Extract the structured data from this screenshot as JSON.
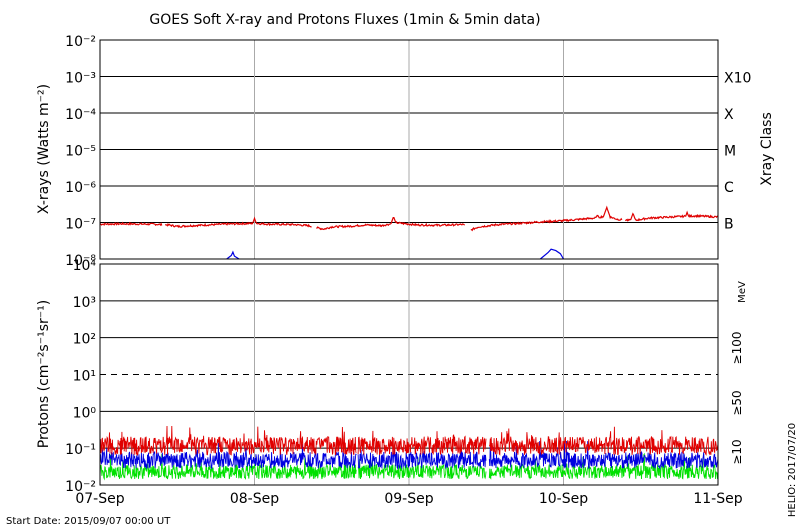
{
  "chart_data": {
    "type": "line",
    "title": "GOES Soft X-ray and Protons Fluxes   (1min & 5min data)",
    "footer_left": "Start Date: 2015/09/07 00:00 UT",
    "footer_right": "HELIO: 2017/07/20",
    "x_ticks": [
      "07-Sep",
      "08-Sep",
      "09-Sep",
      "10-Sep",
      "11-Sep"
    ],
    "xlim_days": [
      0,
      4
    ],
    "xray_panel": {
      "ylabel": "X-rays (Watts m⁻²)",
      "y_scale": "log",
      "ylim": [
        1e-08,
        0.01
      ],
      "y_tick_labels": [
        "10⁻⁸",
        "10⁻⁷",
        "10⁻⁶",
        "10⁻⁵",
        "10⁻⁴",
        "10⁻³",
        "10⁻²"
      ],
      "right_label": "Xray Class",
      "classes": [
        {
          "label": "B",
          "flux": 1e-07
        },
        {
          "label": "C",
          "flux": 1e-06
        },
        {
          "label": "M",
          "flux": 1e-05
        },
        {
          "label": "X",
          "flux": 0.0001
        },
        {
          "label": "X10",
          "flux": 0.001
        }
      ],
      "series": [
        {
          "color": "#e00000",
          "points": [
            [
              0,
              9e-08
            ],
            [
              0.15,
              9.2e-08
            ],
            [
              0.35,
              9e-08
            ],
            [
              0.45,
              8.5e-08
            ],
            [
              0.5,
              7.8e-08
            ],
            [
              0.65,
              8.4e-08
            ],
            [
              0.8,
              9e-08
            ],
            [
              1.0,
              9.5e-08
            ],
            [
              1.1,
              9e-08
            ],
            [
              1.25,
              8.8e-08
            ],
            [
              1.35,
              8.2e-08
            ],
            [
              1.4,
              7.2e-08
            ],
            [
              1.45,
              6.6e-08
            ],
            [
              1.5,
              7.6e-08
            ],
            [
              1.62,
              7.9e-08
            ],
            [
              1.72,
              8.6e-08
            ],
            [
              1.82,
              8.2e-08
            ],
            [
              1.92,
              9.8e-08
            ],
            [
              2.05,
              8.6e-08
            ],
            [
              2.2,
              8.4e-08
            ],
            [
              2.35,
              8.8e-08
            ],
            [
              2.4,
              6.2e-08
            ],
            [
              2.45,
              7.6e-08
            ],
            [
              2.58,
              8.8e-08
            ],
            [
              2.7,
              9.4e-08
            ],
            [
              2.85,
              1.04e-07
            ],
            [
              3.0,
              1.12e-07
            ],
            [
              3.1,
              1.22e-07
            ],
            [
              3.2,
              1.32e-07
            ],
            [
              3.28,
              1.52e-07
            ],
            [
              3.35,
              1.22e-07
            ],
            [
              3.45,
              1.12e-07
            ],
            [
              3.55,
              1.32e-07
            ],
            [
              3.7,
              1.42e-07
            ],
            [
              3.85,
              1.52e-07
            ],
            [
              4.0,
              1.42e-07
            ]
          ],
          "spikes": [
            [
              1.0,
              1.3e-07
            ],
            [
              1.9,
              1.45e-07
            ],
            [
              3.22,
              1.65e-07
            ],
            [
              3.28,
              2.6e-07
            ],
            [
              3.45,
              1.8e-07
            ],
            [
              3.8,
              1.9e-07
            ]
          ]
        },
        {
          "color": "#0000e0",
          "points": [
            [
              0.82,
              1e-08
            ],
            [
              0.85,
              1.25e-08
            ],
            [
              0.86,
              1.55e-08
            ],
            [
              0.87,
              1.2e-08
            ],
            [
              0.9,
              1e-08
            ],
            [
              2.85,
              1e-08
            ],
            [
              2.9,
              1.5e-08
            ],
            [
              2.92,
              1.85e-08
            ],
            [
              2.95,
              1.7e-08
            ],
            [
              2.98,
              1.4e-08
            ],
            [
              3.0,
              1e-08
            ]
          ]
        }
      ]
    },
    "proton_panel": {
      "ylabel": "Protons (cm⁻²s⁻¹sr⁻¹)",
      "y_scale": "log",
      "ylim": [
        0.01,
        10000
      ],
      "y_tick_labels": [
        "10⁻²",
        "10⁻¹",
        "10⁰",
        "10¹",
        "10²",
        "10³",
        "10⁴"
      ],
      "threshold": 10,
      "unit_label": "MeV",
      "series": [
        {
          "name": "≥10",
          "color": "#e00000",
          "base": 0.11,
          "amp": 0.5
        },
        {
          "name": "≥50",
          "color": "#0000e0",
          "base": 0.045,
          "amp": 0.45
        },
        {
          "name": "≥100",
          "color": "#00e000",
          "base": 0.022,
          "amp": 0.4
        }
      ]
    }
  }
}
